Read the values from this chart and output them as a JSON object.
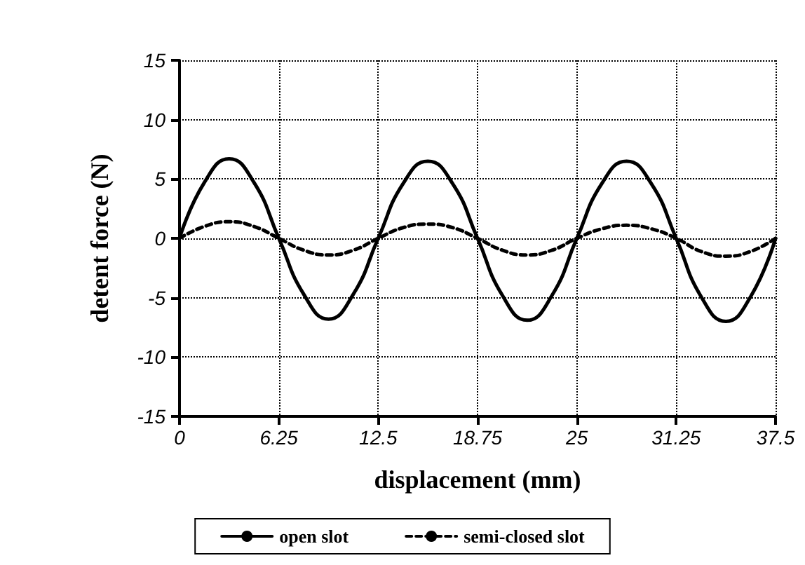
{
  "chart_data": {
    "type": "line",
    "xlabel": "displacement (mm)",
    "ylabel": "detent force (N)",
    "x": [
      0,
      1.5625,
      3.125,
      4.6875,
      6.25,
      7.8125,
      9.375,
      10.9375,
      12.5,
      14.0625,
      15.625,
      17.1875,
      18.75,
      20.3125,
      21.875,
      23.4375,
      25,
      26.5625,
      28.125,
      29.6875,
      31.25,
      32.8125,
      34.375,
      35.9375,
      37.5
    ],
    "series": [
      {
        "name": "open slot",
        "color": "#000000",
        "line_style": "solid",
        "values": [
          0,
          4.7,
          6.7,
          4.7,
          0,
          -4.7,
          -6.8,
          -4.7,
          0,
          4.6,
          6.5,
          4.6,
          0,
          -4.8,
          -6.9,
          -4.8,
          0,
          4.6,
          6.5,
          4.6,
          0,
          -4.9,
          -7.0,
          -4.9,
          0
        ]
      },
      {
        "name": "semi-closed slot",
        "color": "#000000",
        "line_style": "dashed",
        "values": [
          0,
          1.0,
          1.4,
          1.0,
          0,
          -1.0,
          -1.4,
          -1.0,
          0,
          0.9,
          1.2,
          0.9,
          0,
          -1.0,
          -1.4,
          -1.0,
          0,
          0.8,
          1.1,
          0.8,
          0,
          -1.1,
          -1.5,
          -1.1,
          0
        ]
      }
    ],
    "xlim": [
      0,
      37.5
    ],
    "xticks": [
      0,
      6.25,
      12.5,
      18.75,
      25,
      31.25,
      37.5
    ],
    "ylim": [
      -15,
      15
    ],
    "yticks": [
      -15,
      -10,
      -5,
      0,
      5,
      10,
      15
    ],
    "grid": true,
    "legend": "bottom",
    "marker": "none"
  }
}
